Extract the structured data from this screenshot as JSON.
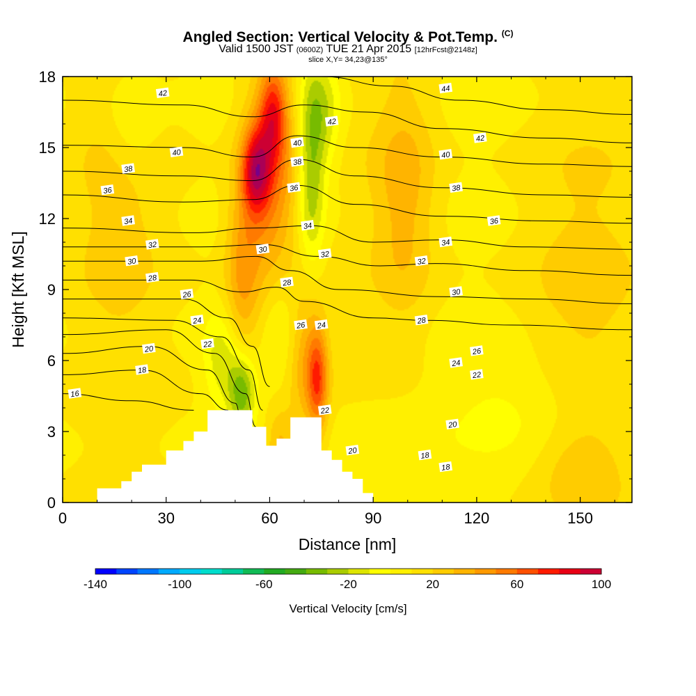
{
  "title": {
    "main": "Angled Section: Vertical Velocity & Pot.Temp.",
    "copyright": "(C)",
    "valid_prefix": "Valid 1500 JST",
    "valid_utc": "(0600Z)",
    "valid_date": "TUE 21 Apr 2015",
    "fcst": "[12hrFcst@2148z]",
    "slice": "slice X,Y= 34,23@135°"
  },
  "chart_data": {
    "type": "heatmap",
    "xlabel": "Distance [nm]",
    "ylabel": "Height [Kft MSL]",
    "xlim": [
      0,
      165
    ],
    "ylim": [
      0,
      18
    ],
    "x_ticks": [
      "0",
      "30",
      "60",
      "90",
      "120",
      "150"
    ],
    "x_tick_values": [
      0,
      30,
      60,
      90,
      120,
      150
    ],
    "y_ticks": [
      "0",
      "3",
      "6",
      "9",
      "12",
      "15",
      "18"
    ],
    "y_tick_values": [
      0,
      3,
      6,
      9,
      12,
      15,
      18
    ],
    "colorbar": {
      "title": "Vertical Velocity [cm/s]",
      "labels": [
        "-140",
        "-100",
        "-60",
        "-20",
        "20",
        "60",
        "100"
      ],
      "label_values": [
        -140,
        -100,
        -60,
        -20,
        20,
        60,
        100
      ],
      "range": [
        -140,
        100
      ],
      "step": 10,
      "colors": [
        "#0000ff",
        "#0044ff",
        "#0077ff",
        "#00aaff",
        "#00ccee",
        "#00ddcc",
        "#00cc99",
        "#11bb55",
        "#22aa22",
        "#44aa11",
        "#77bb00",
        "#aacc00",
        "#dde400",
        "#ffff00",
        "#fff000",
        "#ffe000",
        "#ffcc00",
        "#ffb400",
        "#ff9900",
        "#ff7a00",
        "#ff5000",
        "#ff1a00",
        "#e80014",
        "#cc0033",
        "#aa0055",
        "#770088"
      ]
    },
    "theta_contours_labels": [
      "16",
      "18",
      "20",
      "22",
      "24",
      "26",
      "28",
      "30",
      "32",
      "34",
      "36",
      "38",
      "40",
      "42",
      "44"
    ],
    "theta_contours": [
      {
        "label": "16",
        "points": [
          [
            0,
            4.6
          ],
          [
            20,
            4.3
          ],
          [
            38,
            3.9
          ]
        ]
      },
      {
        "label": "18",
        "points": [
          [
            0,
            5.4
          ],
          [
            23,
            5.6
          ],
          [
            40,
            4.6
          ],
          [
            48,
            3.9
          ]
        ]
      },
      {
        "label": "20",
        "points": [
          [
            0,
            6.3
          ],
          [
            25,
            6.6
          ],
          [
            42,
            5.6
          ],
          [
            50,
            4.2
          ],
          [
            52,
            3.4
          ]
        ]
      },
      {
        "label": "22",
        "points": [
          [
            0,
            7.1
          ],
          [
            30,
            7.3
          ],
          [
            44,
            6.3
          ],
          [
            53,
            4.6
          ],
          [
            56,
            3.2
          ]
        ]
      },
      {
        "label": "24",
        "points": [
          [
            0,
            7.8
          ],
          [
            32,
            7.7
          ],
          [
            46,
            7.0
          ],
          [
            54,
            5.6
          ],
          [
            58,
            3.9
          ]
        ]
      },
      {
        "label": "26",
        "points": [
          [
            0,
            8.6
          ],
          [
            35,
            8.6
          ],
          [
            48,
            7.8
          ],
          [
            55,
            6.6
          ],
          [
            60,
            4.9
          ]
        ]
      },
      {
        "label": "28",
        "points": [
          [
            0,
            9.4
          ],
          [
            37,
            9.4
          ],
          [
            52,
            8.9
          ],
          [
            62,
            9.1
          ],
          [
            70,
            8.5
          ],
          [
            90,
            7.8
          ],
          [
            105,
            7.7
          ],
          [
            130,
            7.5
          ],
          [
            165,
            7.3
          ]
        ]
      },
      {
        "label": "30",
        "points": [
          [
            0,
            10.2
          ],
          [
            40,
            10.2
          ],
          [
            56,
            10.4
          ],
          [
            66,
            9.8
          ],
          [
            80,
            9.0
          ],
          [
            110,
            8.7
          ],
          [
            135,
            8.6
          ],
          [
            165,
            8.4
          ]
        ]
      },
      {
        "label": "32",
        "points": [
          [
            0,
            10.8
          ],
          [
            40,
            10.8
          ],
          [
            58,
            10.9
          ],
          [
            74,
            10.4
          ],
          [
            92,
            10.0
          ],
          [
            108,
            10.1
          ],
          [
            135,
            9.8
          ],
          [
            165,
            9.6
          ]
        ]
      },
      {
        "label": "34",
        "points": [
          [
            0,
            11.6
          ],
          [
            38,
            11.4
          ],
          [
            56,
            11.6
          ],
          [
            72,
            11.7
          ],
          [
            90,
            11.0
          ],
          [
            110,
            11.1
          ],
          [
            135,
            10.8
          ],
          [
            165,
            10.7
          ]
        ]
      },
      {
        "label": "36",
        "points": [
          [
            0,
            13.0
          ],
          [
            35,
            12.7
          ],
          [
            55,
            12.8
          ],
          [
            68,
            13.4
          ],
          [
            85,
            12.6
          ],
          [
            110,
            12.1
          ],
          [
            140,
            11.9
          ],
          [
            165,
            11.8
          ]
        ]
      },
      {
        "label": "38",
        "points": [
          [
            0,
            14.0
          ],
          [
            35,
            13.8
          ],
          [
            55,
            13.6
          ],
          [
            68,
            14.5
          ],
          [
            85,
            13.8
          ],
          [
            110,
            13.3
          ],
          [
            140,
            13.0
          ],
          [
            165,
            12.9
          ]
        ]
      },
      {
        "label": "40",
        "points": [
          [
            0,
            15.1
          ],
          [
            35,
            15.0
          ],
          [
            55,
            14.6
          ],
          [
            68,
            15.5
          ],
          [
            85,
            15.0
          ],
          [
            110,
            14.6
          ],
          [
            140,
            14.3
          ],
          [
            165,
            14.2
          ]
        ]
      },
      {
        "label": "42",
        "points": [
          [
            0,
            17.0
          ],
          [
            35,
            16.8
          ],
          [
            55,
            16.3
          ],
          [
            70,
            16.8
          ],
          [
            88,
            16.5
          ],
          [
            110,
            15.8
          ],
          [
            140,
            15.4
          ],
          [
            165,
            15.2
          ]
        ]
      },
      {
        "label": "44",
        "points": [
          [
            75,
            18.0
          ],
          [
            95,
            17.6
          ],
          [
            115,
            17.0
          ],
          [
            140,
            16.6
          ],
          [
            165,
            16.4
          ]
        ]
      }
    ],
    "theta_labels": [
      {
        "label": "42",
        "x": 29,
        "y": 17.3
      },
      {
        "label": "40",
        "x": 33,
        "y": 14.8
      },
      {
        "label": "38",
        "x": 19,
        "y": 14.1
      },
      {
        "label": "36",
        "x": 13,
        "y": 13.2
      },
      {
        "label": "34",
        "x": 19,
        "y": 11.9
      },
      {
        "label": "32",
        "x": 26,
        "y": 10.9
      },
      {
        "label": "30",
        "x": 20,
        "y": 10.2
      },
      {
        "label": "28",
        "x": 26,
        "y": 9.5
      },
      {
        "label": "26",
        "x": 36,
        "y": 8.8
      },
      {
        "label": "24",
        "x": 39,
        "y": 7.7
      },
      {
        "label": "22",
        "x": 42,
        "y": 6.7
      },
      {
        "label": "20",
        "x": 25,
        "y": 6.5
      },
      {
        "label": "18",
        "x": 23,
        "y": 5.6
      },
      {
        "label": "16",
        "x": 3.5,
        "y": 4.6
      },
      {
        "label": "40",
        "x": 68,
        "y": 15.2
      },
      {
        "label": "38",
        "x": 68,
        "y": 14.4
      },
      {
        "label": "36",
        "x": 67,
        "y": 13.3
      },
      {
        "label": "34",
        "x": 71,
        "y": 11.7
      },
      {
        "label": "32",
        "x": 76,
        "y": 10.5
      },
      {
        "label": "30",
        "x": 58,
        "y": 10.7
      },
      {
        "label": "28",
        "x": 65,
        "y": 9.3
      },
      {
        "label": "26",
        "x": 69,
        "y": 7.5
      },
      {
        "label": "24",
        "x": 75,
        "y": 7.5
      },
      {
        "label": "22",
        "x": 76,
        "y": 3.9
      },
      {
        "label": "20",
        "x": 84,
        "y": 2.2
      },
      {
        "label": "44",
        "x": 111,
        "y": 17.5
      },
      {
        "label": "42",
        "x": 78,
        "y": 16.1
      },
      {
        "label": "42",
        "x": 121,
        "y": 15.4
      },
      {
        "label": "40",
        "x": 111,
        "y": 14.7
      },
      {
        "label": "38",
        "x": 114,
        "y": 13.3
      },
      {
        "label": "36",
        "x": 125,
        "y": 11.9
      },
      {
        "label": "34",
        "x": 111,
        "y": 11.0
      },
      {
        "label": "32",
        "x": 104,
        "y": 10.2
      },
      {
        "label": "30",
        "x": 114,
        "y": 8.9
      },
      {
        "label": "28",
        "x": 104,
        "y": 7.7
      },
      {
        "label": "26",
        "x": 120,
        "y": 6.4
      },
      {
        "label": "24",
        "x": 114,
        "y": 5.9
      },
      {
        "label": "22",
        "x": 120,
        "y": 5.4
      },
      {
        "label": "20",
        "x": 113,
        "y": 3.3
      },
      {
        "label": "18",
        "x": 105,
        "y": 2.0
      },
      {
        "label": "18",
        "x": 111,
        "y": 1.5
      }
    ],
    "terrain": [
      [
        10,
        0.6
      ],
      [
        17,
        0.9
      ],
      [
        20,
        1.3
      ],
      [
        23,
        1.6
      ],
      [
        30,
        2.2
      ],
      [
        35,
        2.6
      ],
      [
        38,
        3.0
      ],
      [
        42,
        3.9
      ],
      [
        51,
        3.9
      ],
      [
        55,
        3.2
      ],
      [
        59,
        2.4
      ],
      [
        62,
        2.7
      ],
      [
        66,
        3.6
      ],
      [
        72,
        3.6
      ],
      [
        75,
        2.2
      ],
      [
        78,
        1.8
      ],
      [
        81,
        1.3
      ],
      [
        84,
        1.0
      ],
      [
        87,
        0.4
      ],
      [
        90,
        0.3
      ]
    ],
    "w_blobs": [
      {
        "x": 60,
        "y": 13.5,
        "w": 45,
        "rx": 8,
        "ry": 4.5
      },
      {
        "x": 56,
        "y": 14,
        "w": 60,
        "rx": 4,
        "ry": 1.8
      },
      {
        "x": 61,
        "y": 16.5,
        "w": 50,
        "rx": 4,
        "ry": 2.0
      },
      {
        "x": 52,
        "y": 9.5,
        "w": 30,
        "rx": 5,
        "ry": 4.0
      },
      {
        "x": 74,
        "y": 5.2,
        "w": 50,
        "rx": 3,
        "ry": 2.3
      },
      {
        "x": 70,
        "y": 6.3,
        "w": 30,
        "rx": 5,
        "ry": 3.2
      },
      {
        "x": 63,
        "y": 2.5,
        "w": 25,
        "rx": 4,
        "ry": 1.5
      },
      {
        "x": 99,
        "y": 13.0,
        "w": 25,
        "rx": 9,
        "ry": 5
      },
      {
        "x": 16,
        "y": 12.5,
        "w": 15,
        "rx": 12,
        "ry": 6
      },
      {
        "x": 150,
        "y": 9.0,
        "w": 12,
        "rx": 18,
        "ry": 7
      },
      {
        "x": 150,
        "y": 1.5,
        "w": 15,
        "rx": 12,
        "ry": 2
      },
      {
        "x": 72,
        "y": 14.0,
        "w": -40,
        "rx": 4,
        "ry": 4.5
      },
      {
        "x": 76,
        "y": 16.5,
        "w": -25,
        "rx": 5,
        "ry": 2.5
      },
      {
        "x": 52,
        "y": 4.7,
        "w": -50,
        "rx": 4,
        "ry": 1.6
      },
      {
        "x": 46,
        "y": 6.0,
        "w": -25,
        "rx": 5,
        "ry": 2.0
      },
      {
        "x": 64,
        "y": 7.5,
        "w": -15,
        "rx": 6,
        "ry": 3
      },
      {
        "x": 20,
        "y": 16.0,
        "w": -18,
        "rx": 8,
        "ry": 2.5
      },
      {
        "x": 135,
        "y": 4.0,
        "w": -12,
        "rx": 25,
        "ry": 2.5
      },
      {
        "x": 90,
        "y": 2.0,
        "w": -8,
        "rx": 18,
        "ry": 3
      }
    ]
  }
}
